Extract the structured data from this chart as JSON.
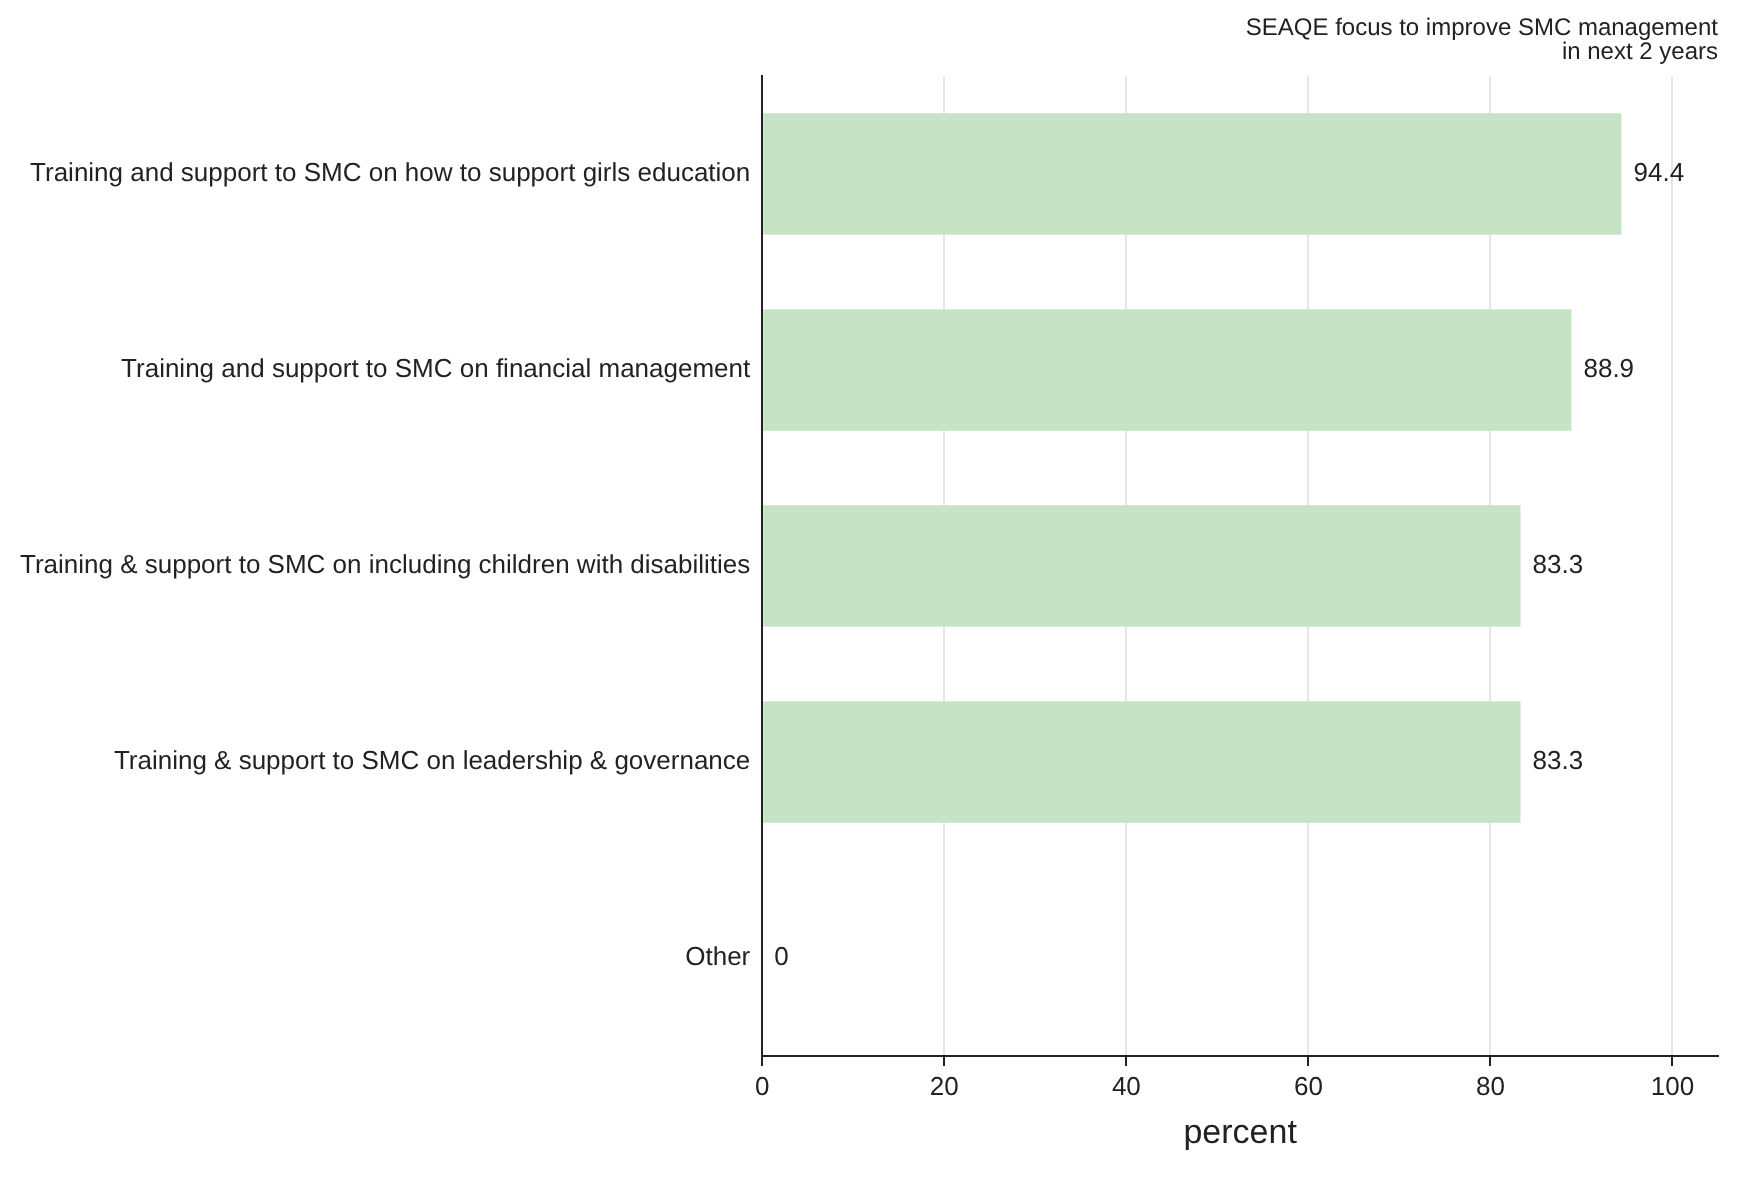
{
  "chart_data": {
    "type": "bar",
    "orientation": "horizontal",
    "title": [
      "SEAQE focus to improve SMC management",
      "in next 2 years"
    ],
    "xlabel": "percent",
    "categories": [
      "Training and support to SMC on how to support girls education",
      "Training and support to SMC on financial management",
      "Training & support to SMC on including children with disabilities",
      "Training & support to SMC on leadership & governance",
      "Other"
    ],
    "values": [
      94.4,
      88.9,
      83.3,
      83.3,
      0
    ],
    "color": "#c6e3c6",
    "xlim": [
      0,
      105
    ],
    "xticks": [
      0,
      20,
      40,
      60,
      80,
      100
    ],
    "grid": "x",
    "data_labels": true,
    "legend": false
  }
}
